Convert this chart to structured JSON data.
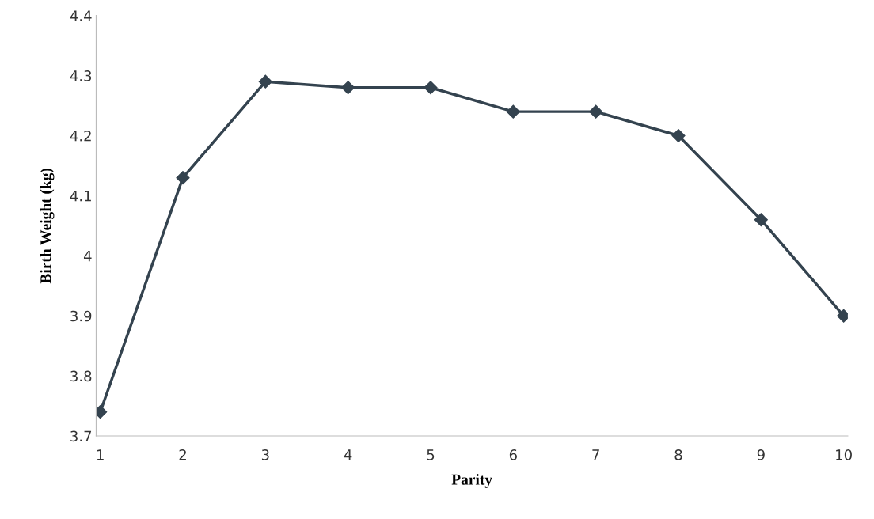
{
  "chart_data": {
    "type": "line",
    "xlabel": "Parity",
    "ylabel": "Birth Weight (kg)",
    "categories": [
      "1",
      "2",
      "3",
      "4",
      "5",
      "6",
      "7",
      "8",
      "9",
      "10"
    ],
    "series": [
      {
        "color": "#34434f",
        "values": [
          3.74,
          4.13,
          4.29,
          4.28,
          4.28,
          4.24,
          4.24,
          4.2,
          4.06,
          3.9
        ]
      }
    ],
    "ylim": [
      3.7,
      4.4
    ],
    "yticks": [
      {
        "value": 3.7,
        "label": "3.7"
      },
      {
        "value": 3.8,
        "label": "3.8"
      },
      {
        "value": 3.9,
        "label": "3.9"
      },
      {
        "value": 4.0,
        "label": "4"
      },
      {
        "value": 4.1,
        "label": "4.1"
      },
      {
        "value": 4.2,
        "label": "4.2"
      },
      {
        "value": 4.3,
        "label": "4.3"
      },
      {
        "value": 4.4,
        "label": "4.4"
      }
    ],
    "marker": "diamond",
    "line_style": "solid"
  }
}
